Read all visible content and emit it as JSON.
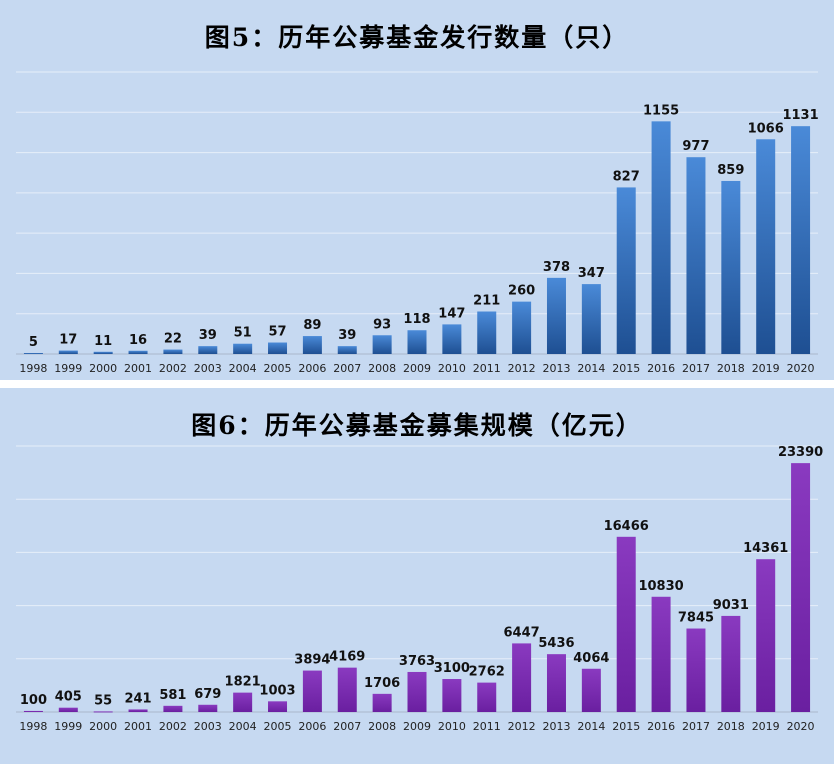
{
  "chart_data": [
    {
      "type": "bar",
      "title": "图5：历年公募基金发行数量（只）",
      "categories": [
        "1998",
        "1999",
        "2000",
        "2001",
        "2002",
        "2003",
        "2004",
        "2005",
        "2006",
        "2007",
        "2008",
        "2009",
        "2010",
        "2011",
        "2012",
        "2013",
        "2014",
        "2015",
        "2016",
        "2017",
        "2018",
        "2019",
        "2020"
      ],
      "values": [
        5,
        17,
        11,
        16,
        22,
        39,
        51,
        57,
        89,
        39,
        93,
        118,
        147,
        211,
        260,
        378,
        347,
        827,
        1155,
        977,
        859,
        1066,
        1131
      ],
      "ylim": [
        0,
        1400
      ],
      "grid": true,
      "data_labels": true,
      "colors": {
        "bar_top": "#4a8ad8",
        "bar_bottom": "#1e4f92"
      }
    },
    {
      "type": "bar",
      "title": "图6：历年公募基金募集规模（亿元）",
      "categories": [
        "1998",
        "1999",
        "2000",
        "2001",
        "2002",
        "2003",
        "2004",
        "2005",
        "2006",
        "2007",
        "2008",
        "2009",
        "2010",
        "2011",
        "2012",
        "2013",
        "2014",
        "2015",
        "2016",
        "2017",
        "2018",
        "2019",
        "2020"
      ],
      "values": [
        100,
        405,
        55,
        241,
        581,
        679,
        1821,
        1003,
        3894,
        4169,
        1706,
        3763,
        3100,
        2762,
        6447,
        5436,
        4064,
        16466,
        10830,
        7845,
        9031,
        14361,
        23390
      ],
      "ylim": [
        0,
        25000
      ],
      "grid": true,
      "data_labels": true,
      "colors": {
        "bar_top": "#8a3ac0",
        "bar_bottom": "#6a1fa0"
      }
    }
  ]
}
